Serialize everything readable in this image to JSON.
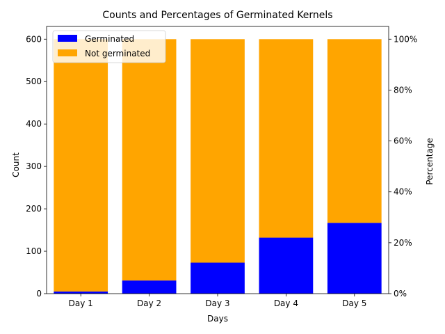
{
  "chart_data": {
    "type": "bar",
    "stacked": true,
    "title": "Counts and Percentages of Germinated Kernels",
    "xlabel": "Days",
    "ylabel": "Count",
    "ylabel_right": "Percentage",
    "categories": [
      "Day 1",
      "Day 2",
      "Day 3",
      "Day 4",
      "Day 5"
    ],
    "series": [
      {
        "name": "Germinated",
        "color": "#0000ff",
        "values": [
          5,
          31,
          73,
          132,
          167
        ]
      },
      {
        "name": "Not germinated",
        "color": "#ffa500",
        "values": [
          595,
          569,
          527,
          468,
          433
        ]
      }
    ],
    "ylim": [
      0,
      630
    ],
    "yticks": [
      0,
      100,
      200,
      300,
      400,
      500,
      600
    ],
    "ylim_right": [
      0,
      1.05
    ],
    "yticks_right": [
      "0%",
      "20%",
      "40%",
      "60%",
      "80%",
      "100%"
    ],
    "ytick_right_values": [
      0,
      0.2,
      0.4,
      0.6,
      0.8,
      1.0
    ],
    "legend": "top-left",
    "grid": false
  }
}
